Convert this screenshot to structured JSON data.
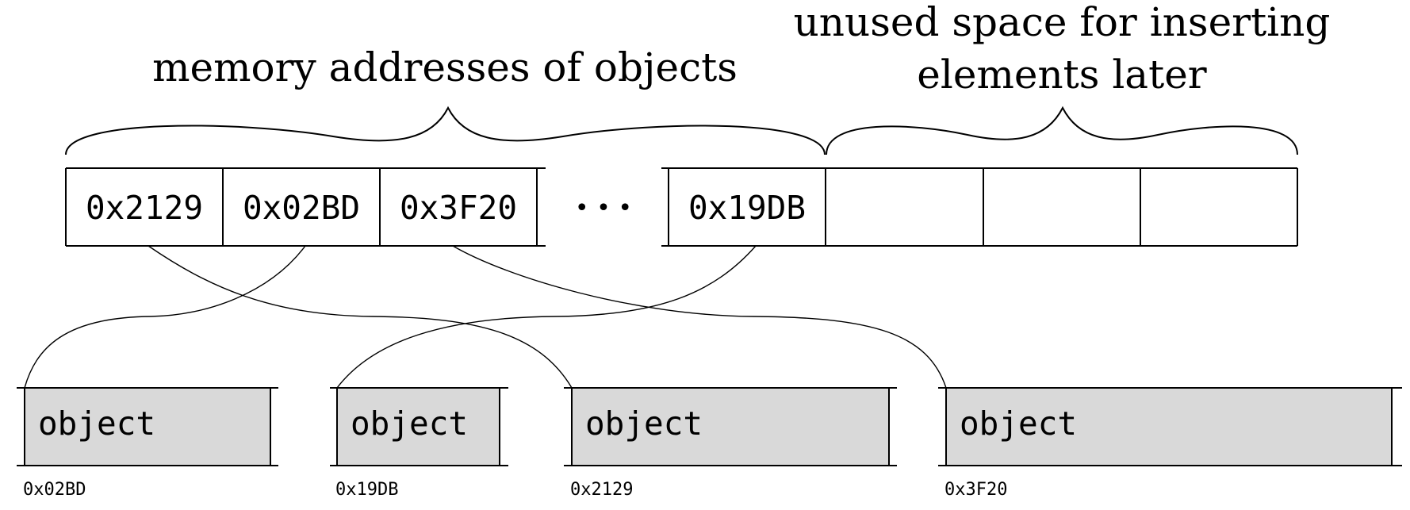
{
  "labels": {
    "left_brace": [
      "memory addresses of objects"
    ],
    "right_brace": [
      "unused space for inserting",
      "elements later"
    ]
  },
  "array": {
    "cells": [
      "0x2129",
      "0x02BD",
      "0x3F20",
      "0x19DB"
    ],
    "ellipsis": "• • •",
    "empty_cells": 3
  },
  "objects": [
    {
      "label": "object",
      "address": "0x02BD"
    },
    {
      "label": "object",
      "address": "0x19DB"
    },
    {
      "label": "object",
      "address": "0x2129"
    },
    {
      "label": "object",
      "address": "0x3F20"
    }
  ],
  "colors": {
    "stroke": "#000000",
    "object_fill": "#d9d9d9"
  }
}
